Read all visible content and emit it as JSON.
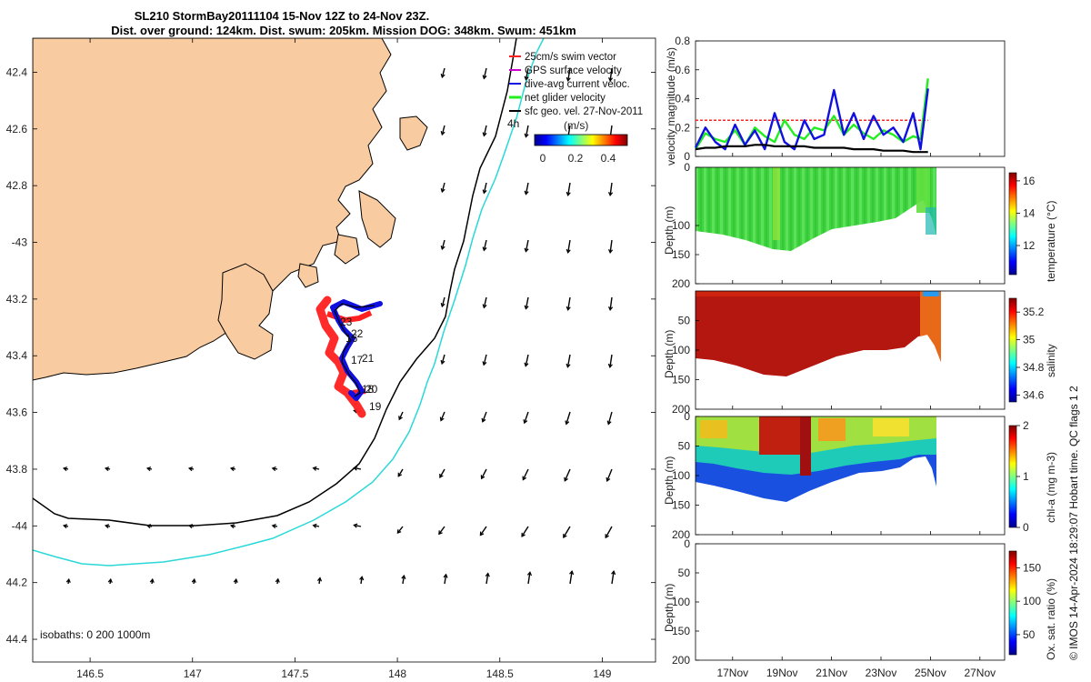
{
  "title": {
    "line1": "SL210 StormBay20111104 15-Nov 12Z to 24-Nov 23Z.",
    "line2": "Dist. over ground: 124km. Dist. swum: 205km. Mission DOG: 348km. Swum: 451km"
  },
  "colors": {
    "land": "#f8cba0",
    "sea": "#ffffff",
    "isobath_200": "#000000",
    "isobath_1000": "#2ad8d8",
    "track_red": "#ff2020",
    "track_blue": "#1010e0",
    "net_green": "#22ee22",
    "geo_black": "#000000"
  },
  "chart_data": [
    {
      "type": "map",
      "name": "glider-track-map",
      "xlabel_ticks": [
        "146.5",
        "147",
        "147.5",
        "148",
        "148.5",
        "149"
      ],
      "x_ticks": [
        146.5,
        147,
        147.5,
        148,
        148.5,
        149
      ],
      "ylabel_ticks": [
        "42.4",
        "42.6",
        "42.8",
        "-43",
        "43.2",
        "43.4",
        "43.6",
        "43.8",
        "-44",
        "44.2",
        "44.4"
      ],
      "y_ticks": [
        -42.4,
        -42.6,
        -42.8,
        -43.0,
        -43.2,
        -43.4,
        -43.6,
        -43.8,
        -44.0,
        -44.2,
        -44.4
      ],
      "xlim": [
        146.22,
        149.26
      ],
      "ylim": [
        -44.48,
        -42.28
      ],
      "legend": [
        {
          "label": "25cm/s swim vector",
          "color": "#ff2020"
        },
        {
          "label": "GPS surface velocity",
          "color": "#cc00cc"
        },
        {
          "label": "dive-avg current veloc.",
          "color": "#1010e0"
        },
        {
          "label": "net glider velocity",
          "color": "#22ee22"
        },
        {
          "label": "sfc geo. vel. 27-Nov-2011",
          "color": "#000000"
        }
      ],
      "colorbar": {
        "label": "(m/s)",
        "ticks": [
          "0",
          "0.2",
          "0.4"
        ],
        "range": [
          0,
          0.5
        ]
      },
      "isobath_label": "isobaths: 0   200  1000m",
      "track_day_labels": [
        "23",
        "22",
        "16",
        "21",
        "17",
        "20",
        "18",
        "19"
      ],
      "offshore_label": "4h",
      "track_lonlat": [
        [
          148.05,
          -43.22
        ],
        [
          147.92,
          -43.25
        ],
        [
          147.8,
          -43.22
        ],
        [
          147.74,
          -43.25
        ],
        [
          147.71,
          -43.3
        ],
        [
          147.74,
          -43.35
        ],
        [
          147.78,
          -43.38
        ],
        [
          147.74,
          -43.42
        ],
        [
          147.71,
          -43.48
        ],
        [
          147.75,
          -43.52
        ],
        [
          147.8,
          -43.56
        ],
        [
          147.84,
          -43.58
        ],
        [
          147.8,
          -43.59
        ],
        [
          147.77,
          -43.56
        ]
      ]
    },
    {
      "type": "line",
      "name": "velocity-magnitude",
      "ylabel": "velocity magnitude (m/s)",
      "ylim": [
        0,
        0.8
      ],
      "yticks": [
        0,
        0.2,
        0.4,
        0.6,
        0.8
      ],
      "ytick_labels": [
        "0",
        "0.2",
        "0.4",
        "0.6",
        "0.8"
      ],
      "x_days": [
        15.5,
        15.9,
        16.3,
        16.7,
        17.1,
        17.5,
        17.9,
        18.3,
        18.7,
        19.1,
        19.5,
        19.9,
        20.3,
        20.7,
        21.1,
        21.5,
        21.9,
        22.3,
        22.7,
        23.1,
        23.5,
        23.9,
        24.3,
        24.6,
        24.9
      ],
      "series": [
        {
          "name": "swim speed 25cm/s",
          "color": "#ff2020",
          "values": [
            0.25,
            0.25,
            0.25,
            0.25,
            0.25,
            0.25,
            0.25,
            0.25,
            0.25,
            0.25,
            0.25,
            0.25,
            0.25,
            0.25,
            0.25,
            0.25,
            0.25,
            0.25,
            0.25,
            0.25,
            0.25,
            0.25,
            0.25,
            0.25,
            0.25
          ]
        },
        {
          "name": "net glider velocity",
          "color": "#22ee22",
          "values": [
            0.05,
            0.16,
            0.12,
            0.1,
            0.18,
            0.08,
            0.2,
            0.14,
            0.1,
            0.25,
            0.15,
            0.12,
            0.2,
            0.18,
            0.28,
            0.15,
            0.22,
            0.16,
            0.12,
            0.18,
            0.15,
            0.1,
            0.14,
            0.12,
            0.54
          ]
        },
        {
          "name": "dive-avg current veloc.",
          "color": "#1010e0",
          "values": [
            0.06,
            0.2,
            0.1,
            0.05,
            0.22,
            0.08,
            0.18,
            0.05,
            0.3,
            0.1,
            0.05,
            0.25,
            0.12,
            0.15,
            0.46,
            0.15,
            0.3,
            0.12,
            0.28,
            0.15,
            0.2,
            0.1,
            0.3,
            0.05,
            0.47
          ]
        },
        {
          "name": "sfc geo. vel.",
          "color": "#000000",
          "values": [
            0.05,
            0.06,
            0.06,
            0.07,
            0.07,
            0.07,
            0.08,
            0.08,
            0.07,
            0.07,
            0.07,
            0.07,
            0.06,
            0.06,
            0.06,
            0.06,
            0.05,
            0.05,
            0.05,
            0.04,
            0.04,
            0.04,
            0.03,
            0.03,
            0.03
          ]
        }
      ]
    },
    {
      "type": "heatmap",
      "name": "temperature-section",
      "ylabel": "Depth (m)",
      "ylim": [
        0,
        200
      ],
      "yticks": [
        0,
        100,
        150,
        200
      ],
      "cbar_label": "temperature (°C)",
      "cbar_ticks": [
        12,
        14,
        16
      ],
      "cbar_range": [
        10.2,
        16.5
      ],
      "bottom_depth": [
        [
          15.5,
          100
        ],
        [
          16.5,
          105
        ],
        [
          17.5,
          120
        ],
        [
          18.5,
          135
        ],
        [
          19.2,
          145
        ],
        [
          20.0,
          140
        ],
        [
          21.0,
          120
        ],
        [
          22.0,
          105
        ],
        [
          23.0,
          100
        ],
        [
          24.0,
          75
        ],
        [
          24.5,
          50
        ],
        [
          24.9,
          115
        ]
      ]
    },
    {
      "type": "heatmap",
      "name": "salinity-section",
      "ylabel": "Depth (m)",
      "ylim": [
        0,
        200
      ],
      "yticks": [
        50,
        100,
        150,
        200
      ],
      "cbar_label": "salinity",
      "cbar_ticks": [
        34.6,
        34.8,
        35,
        35.2
      ],
      "cbar_tick_labels": [
        "34.6",
        "34.8",
        "35",
        "35.2"
      ],
      "cbar_range": [
        34.55,
        35.3
      ]
    },
    {
      "type": "heatmap",
      "name": "chla-section",
      "ylabel": "Depth (m)",
      "ylim": [
        0,
        200
      ],
      "yticks": [
        0,
        50,
        100,
        150,
        200
      ],
      "cbar_label": "chl-a (mg m-3)",
      "cbar_ticks": [
        0,
        1,
        2
      ],
      "cbar_range": [
        0,
        2
      ]
    },
    {
      "type": "heatmap",
      "name": "oxygen-section",
      "ylabel": "Depth (m)",
      "ylim": [
        0,
        200
      ],
      "yticks": [
        0,
        50,
        100,
        150,
        200
      ],
      "cbar_label": "Ox. sat. ratio (%)",
      "cbar_ticks": [
        50,
        100,
        150
      ],
      "cbar_range": [
        20,
        175
      ],
      "xtick_labels": [
        "17Nov",
        "19Nov",
        "21Nov",
        "23Nov",
        "25Nov",
        "27Nov"
      ],
      "xticks_days": [
        17,
        19,
        21,
        23,
        25,
        27
      ],
      "xlim_days": [
        15.5,
        28
      ]
    }
  ],
  "footer": "© IMOS 14-Apr-2024 18:29:07 Hobart time. QC flags 1  2"
}
